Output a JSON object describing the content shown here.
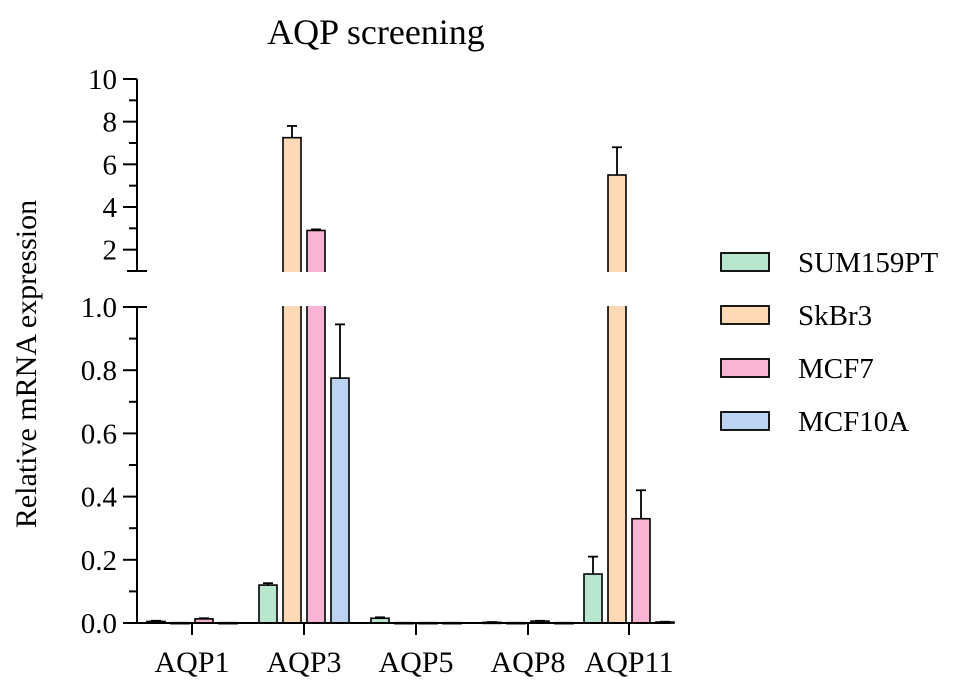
{
  "chart_data": {
    "type": "bar",
    "title": "AQP screening",
    "xlabel": "",
    "ylabel": "Relative mRNA expression",
    "categories": [
      "AQP1",
      "AQP3",
      "AQP5",
      "AQP8",
      "AQP11"
    ],
    "series": [
      {
        "name": "SUM159PT",
        "color": "#b8e6cf",
        "values": [
          0.005,
          0.12,
          0.015,
          0.002,
          0.155
        ],
        "errors": [
          0.002,
          0.006,
          0.003,
          0.001,
          0.055
        ]
      },
      {
        "name": "SkBr3",
        "color": "#fdd9b5",
        "values": [
          0.001,
          7.25,
          0.001,
          0.001,
          5.5
        ],
        "errors": [
          0.0,
          0.55,
          0.0,
          0.0,
          1.3
        ]
      },
      {
        "name": "MCF7",
        "color": "#f7b5d3",
        "values": [
          0.013,
          2.9,
          0.001,
          0.006,
          0.33
        ],
        "errors": [
          0.002,
          0.05,
          0.0,
          0.001,
          0.09
        ]
      },
      {
        "name": "MCF10A",
        "color": "#bcd4f2",
        "values": [
          0.001,
          0.775,
          0.001,
          0.001,
          0.003
        ],
        "errors": [
          0.0,
          0.17,
          0.0,
          0.0,
          0.001
        ]
      }
    ],
    "axis": {
      "broken": true,
      "lower_segment": {
        "ylim": [
          0,
          1.0
        ],
        "ticks": [
          "0.0",
          "0.2",
          "0.4",
          "0.6",
          "0.8",
          "1.0"
        ],
        "tick_values": [
          0,
          0.2,
          0.4,
          0.6,
          0.8,
          1.0
        ],
        "minor_step": 0.1
      },
      "upper_segment": {
        "ylim": [
          1.0,
          10
        ],
        "ticks": [
          "2",
          "4",
          "6",
          "8",
          "10"
        ],
        "tick_values": [
          2,
          4,
          6,
          8,
          10
        ],
        "minor_step": 1
      }
    },
    "legend": {
      "position": "right"
    },
    "grid": false
  }
}
